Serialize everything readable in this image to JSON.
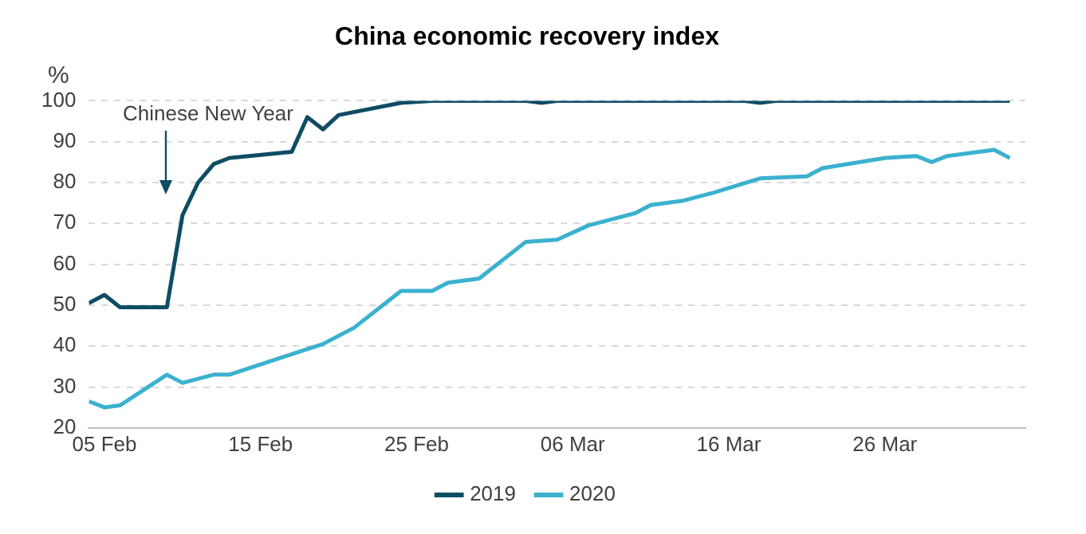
{
  "chart_data": {
    "type": "line",
    "title": "China economic recovery index",
    "ylabel": "%",
    "xlim": [
      "--02-04",
      "--04-04"
    ],
    "xticks": [
      {
        "value": "--02-05",
        "label": "05 Feb"
      },
      {
        "value": "--02-15",
        "label": "15 Feb"
      },
      {
        "value": "--02-25",
        "label": "25 Feb"
      },
      {
        "value": "--03-06",
        "label": "06 Mar"
      },
      {
        "value": "--03-16",
        "label": "16 Mar"
      },
      {
        "value": "--03-26",
        "label": "26 Mar"
      }
    ],
    "ylim": [
      20,
      100
    ],
    "yticks": [
      20,
      30,
      40,
      50,
      60,
      70,
      80,
      90,
      100
    ],
    "grid": "y",
    "legend": "bottom",
    "marker": "none",
    "line_style": "solid",
    "annotations": [
      "Chinese New Year"
    ],
    "series": [
      {
        "name": "2019",
        "color": "#0e4d64",
        "x": [
          "--02-04",
          "--02-05",
          "--02-06",
          "--02-09",
          "--02-10",
          "--02-11",
          "--02-12",
          "--02-13",
          "--02-17",
          "--02-18",
          "--02-19",
          "--02-20",
          "--02-24",
          "--02-26",
          "--03-03",
          "--03-04",
          "--03-05",
          "--03-17",
          "--03-18",
          "--03-19",
          "--04-03"
        ],
        "values": [
          50.5,
          52.5,
          49.5,
          49.5,
          72,
          80,
          84.5,
          86,
          87.5,
          96,
          93,
          96.5,
          99.5,
          100,
          100,
          99.5,
          100,
          100,
          99.5,
          100,
          100
        ]
      },
      {
        "name": "2020",
        "color": "#3bb1cf",
        "x": [
          "--02-04",
          "--02-05",
          "--02-06",
          "--02-09",
          "--02-10",
          "--02-12",
          "--02-13",
          "--02-17",
          "--02-19",
          "--02-21",
          "--02-24",
          "--02-26",
          "--02-27",
          "--02-29",
          "--03-03",
          "--03-05",
          "--03-07",
          "--03-10",
          "--03-11",
          "--03-13",
          "--03-15",
          "--03-18",
          "--03-21",
          "--03-22",
          "--03-26",
          "--03-28",
          "--03-29",
          "--03-30",
          "--04-02",
          "--04-03"
        ],
        "values": [
          26.5,
          25,
          25.5,
          33,
          31,
          33,
          33,
          38,
          40.5,
          44.5,
          53.5,
          53.5,
          55.5,
          56.5,
          65.5,
          66,
          69.5,
          72.5,
          74.5,
          75.5,
          77.5,
          81,
          81.5,
          83.5,
          86,
          86.5,
          85,
          86.5,
          88,
          86
        ]
      }
    ]
  }
}
